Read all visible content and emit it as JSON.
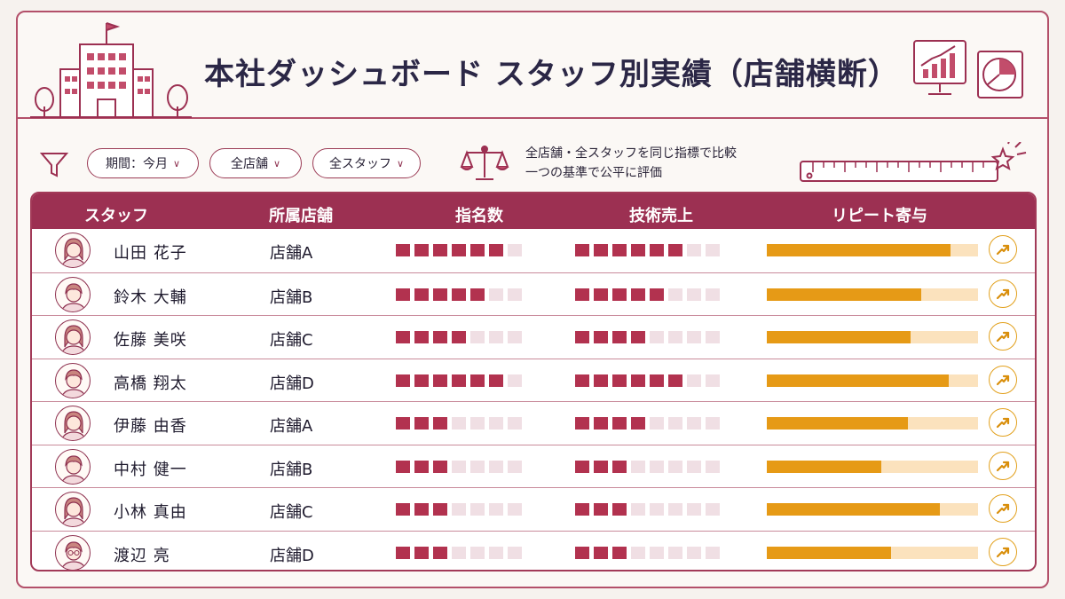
{
  "header": {
    "title": "本社ダッシュボード スタッフ別実績（店舗横断）"
  },
  "filters": [
    {
      "label": "期間：今月"
    },
    {
      "label": "全店舗"
    },
    {
      "label": "全スタッフ"
    }
  ],
  "note": {
    "line1": "全店舗・全スタッフを同じ指標で比較",
    "line2": "一つの基準で公平に評価"
  },
  "table": {
    "headers": {
      "staff": "スタッフ",
      "store": "所属店舗",
      "nominations": "指名数",
      "tech_sales": "技術売上",
      "repeat": "リピート寄与"
    },
    "max_squares_nominations": 7,
    "max_squares_tech": 8,
    "rows": [
      {
        "name": "山田 花子",
        "store": "店舗A",
        "nominations": 6,
        "tech_sales": 6,
        "repeat": 0.87,
        "avatar": "female"
      },
      {
        "name": "鈴木 大輔",
        "store": "店舗B",
        "nominations": 5,
        "tech_sales": 5,
        "repeat": 0.73,
        "avatar": "male"
      },
      {
        "name": "佐藤 美咲",
        "store": "店舗C",
        "nominations": 4,
        "tech_sales": 4,
        "repeat": 0.68,
        "avatar": "female"
      },
      {
        "name": "高橋 翔太",
        "store": "店舗D",
        "nominations": 6,
        "tech_sales": 6,
        "repeat": 0.86,
        "avatar": "male"
      },
      {
        "name": "伊藤 由香",
        "store": "店舗A",
        "nominations": 3,
        "tech_sales": 4,
        "repeat": 0.67,
        "avatar": "female"
      },
      {
        "name": "中村 健一",
        "store": "店舗B",
        "nominations": 3,
        "tech_sales": 3,
        "repeat": 0.54,
        "avatar": "male"
      },
      {
        "name": "小林 真由",
        "store": "店舗C",
        "nominations": 3,
        "tech_sales": 3,
        "repeat": 0.82,
        "avatar": "female"
      },
      {
        "name": "渡辺 亮",
        "store": "店舗D",
        "nominations": 3,
        "tech_sales": 3,
        "repeat": 0.59,
        "avatar": "male-glasses"
      }
    ]
  },
  "colors": {
    "accent": "#9c3052",
    "square_on": "#b2324f",
    "square_off": "#f0dfe4",
    "bar_fill": "#e69a16",
    "bar_track": "#fbe2bd"
  },
  "icons": [
    "building-icon",
    "tree-icon",
    "monitor-chart-icon",
    "pie-chart-icon",
    "funnel-icon",
    "balance-scale-icon",
    "ruler-icon",
    "sparkle-icon",
    "chevron-down-icon",
    "trend-up-icon"
  ]
}
